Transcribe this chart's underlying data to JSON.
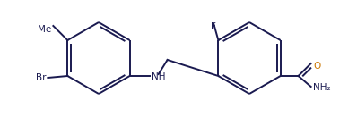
{
  "bg_color": "#ffffff",
  "line_color": "#1a1a50",
  "atom_color": "#1a1a50",
  "o_color": "#cc7700",
  "label_Br": "Br",
  "label_Me": "Me",
  "label_NH": "NH",
  "label_F": "F",
  "label_O": "O",
  "label_NH2": "NH₂",
  "figsize": [
    3.98,
    1.5
  ],
  "dpi": 100,
  "lw": 1.4
}
